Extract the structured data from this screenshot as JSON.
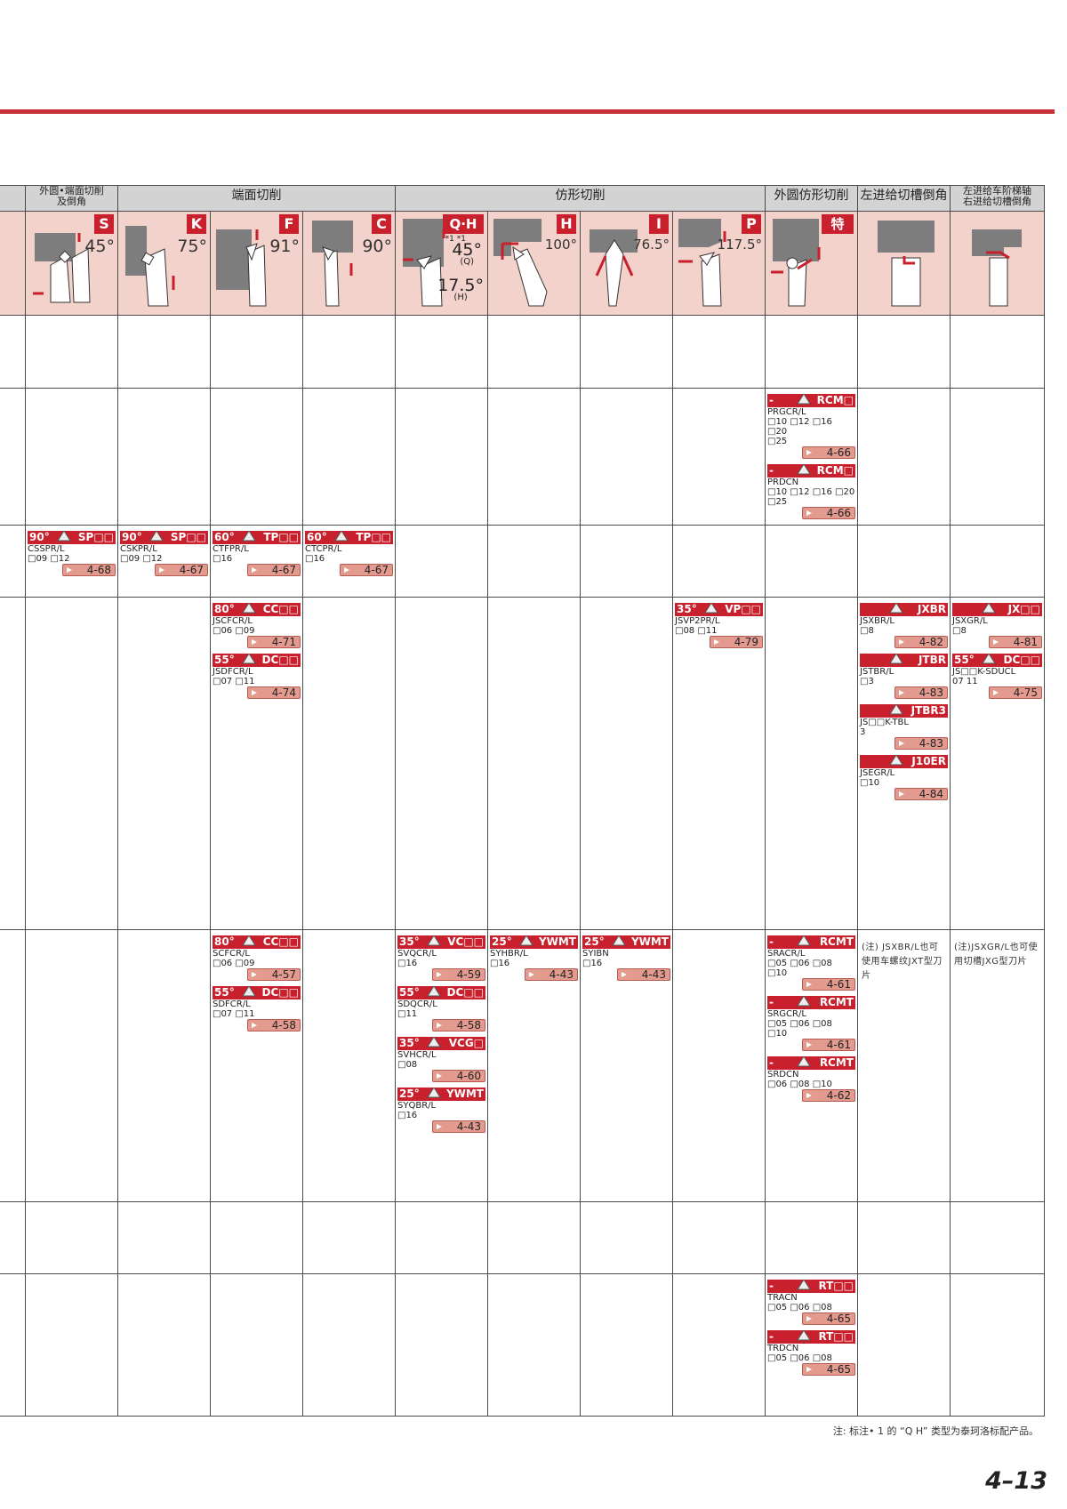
{
  "groups": {
    "g1": "外圆•端面切削\n及倒角",
    "g2": "端面切削",
    "g3": "仿形切削",
    "g4": "外圆仿形切削",
    "g5": "左进给切槽倒角",
    "g6": "左进给车阶梯轴\n右进给切槽倒角"
  },
  "tools": {
    "S": {
      "letter": "S",
      "angle": "45°"
    },
    "K": {
      "letter": "K",
      "angle": "75°"
    },
    "F": {
      "letter": "F",
      "angle": "91°"
    },
    "C": {
      "letter": "C",
      "angle": "90°"
    },
    "QH": {
      "letter": "Q·H",
      "mark": "*1 *1",
      "a1": "45°",
      "s1": "(Q)",
      "a2": "17.5°",
      "s2": "(H)"
    },
    "H": {
      "letter": "H",
      "angle": "100°"
    },
    "I": {
      "letter": "I",
      "angle": "76.5°"
    },
    "P": {
      "letter": "P",
      "angle": "117.5°"
    },
    "TOKU": {
      "letter": "特"
    }
  },
  "rows": {
    "r2": {
      "c9": [
        {
          "ang": "-",
          "code": "RCM□",
          "model": "PRGCR/L",
          "sizes": "□10 □12 □16\n□20\n□25",
          "page": "4-66"
        },
        {
          "ang": "-",
          "code": "RCM□",
          "model": "PRDCN",
          "sizes": "□10 □12 □16 □20 □25",
          "page": "4-66"
        }
      ]
    },
    "r3": {
      "c1": [
        {
          "ang": "90°",
          "code": "SP□□",
          "model": "CSSPR/L",
          "sizes": "□09 □12",
          "page": "4-68"
        }
      ],
      "c2": [
        {
          "ang": "90°",
          "code": "SP□□",
          "model": "CSKPR/L",
          "sizes": "□09 □12",
          "page": "4-67"
        }
      ],
      "c3": [
        {
          "ang": "60°",
          "code": "TP□□",
          "model": "CTFPR/L",
          "sizes": "□16",
          "page": "4-67"
        }
      ],
      "c4": [
        {
          "ang": "60°",
          "code": "TP□□",
          "model": "CTCPR/L",
          "sizes": "□16",
          "page": "4-67"
        }
      ]
    },
    "r4": {
      "c3": [
        {
          "ang": "80°",
          "code": "CC□□",
          "model": "JSCFCR/L",
          "sizes": "□06 □09",
          "page": "4-71"
        },
        {
          "ang": "55°",
          "code": "DC□□",
          "model": "JSDFCR/L",
          "sizes": "□07 □11",
          "page": "4-74"
        }
      ],
      "c8": [
        {
          "ang": "35°",
          "code": "VP□□",
          "model": "JSVP2PR/L",
          "sizes": "□08 □11",
          "page": "4-79"
        }
      ],
      "c10": [
        {
          "ang": "",
          "code": "JXBR",
          "model": "JSXBR/L",
          "sizes": "□8",
          "page": "4-82"
        },
        {
          "ang": "",
          "code": "JTBR",
          "model": "JSTBR/L",
          "sizes": "□3",
          "page": "4-83"
        },
        {
          "ang": "",
          "code": "JTBR3",
          "model": "JS□□K-TBL",
          "sizes": "3",
          "page": "4-83"
        },
        {
          "ang": "",
          "code": "J10ER",
          "model": "JSEGR/L",
          "sizes": "□10",
          "page": "4-84"
        }
      ],
      "c11": [
        {
          "ang": "",
          "code": "JX□□",
          "model": "JSXGR/L",
          "sizes": "□8",
          "page": "4-81"
        },
        {
          "ang": "55°",
          "code": "DC□□",
          "model": "JS□□K-SDUCL",
          "sizes": "07 11",
          "page": "4-75"
        }
      ]
    },
    "r5": {
      "c3": [
        {
          "ang": "80°",
          "code": "CC□□",
          "model": "SCFCR/L",
          "sizes": "□06 □09",
          "page": "4-57"
        },
        {
          "ang": "55°",
          "code": "DC□□",
          "model": "SDFCR/L",
          "sizes": "□07 □11",
          "page": "4-58"
        }
      ],
      "c5": [
        {
          "ang": "35°",
          "code": "VC□□",
          "model": "SVQCR/L",
          "sizes": "□16",
          "page": "4-59"
        },
        {
          "ang": "55°",
          "code": "DC□□",
          "model": "SDQCR/L",
          "sizes": "□11",
          "page": "4-58"
        },
        {
          "ang": "35°",
          "code": "VCG□",
          "model": "SVHCR/L",
          "sizes": "□08",
          "page": "4-60"
        },
        {
          "ang": "25°",
          "code": "YWMT",
          "model": "SYQBR/L",
          "sizes": "□16",
          "page": "4-43"
        }
      ],
      "c6": [
        {
          "ang": "25°",
          "code": "YWMT",
          "model": "SYHBR/L",
          "sizes": "□16",
          "page": "4-43"
        }
      ],
      "c7": [
        {
          "ang": "25°",
          "code": "YWMT",
          "model": "SYIBN",
          "sizes": "□16",
          "page": "4-43"
        }
      ],
      "c9": [
        {
          "ang": "-",
          "code": "RCMT",
          "model": "SRACR/L",
          "sizes": "□05 □06 □08\n□10",
          "page": "4-61"
        },
        {
          "ang": "-",
          "code": "RCMT",
          "model": "SRGCR/L",
          "sizes": "□05 □06 □08\n□10",
          "page": "4-61"
        },
        {
          "ang": "-",
          "code": "RCMT",
          "model": "SRDCN",
          "sizes": "□06 □08 □10",
          "page": "4-62"
        }
      ],
      "c10_note": "(注) JSXBR/L也可使用车螺纹JXT型刀片",
      "c11_note": "(注)JSXGR/L也可使用切槽JXG型刀片"
    },
    "r7": {
      "c9": [
        {
          "ang": "-",
          "code": "RT□□",
          "model": "TRACN",
          "sizes": "□05 □06 □08",
          "page": "4-65"
        },
        {
          "ang": "-",
          "code": "RT□□",
          "model": "TRDCN",
          "sizes": "□05 □06 □08",
          "page": "4-65"
        }
      ]
    }
  },
  "footnote": "注: 标注• 1 的 “Q H” 类型为泰珂洛标配产品。",
  "page_number": "4–13",
  "colors": {
    "accent": "#c8202c",
    "header_bg": "#f2d2ca",
    "group_bg": "#d3d3d3",
    "page_tag": "#e39a8f"
  }
}
